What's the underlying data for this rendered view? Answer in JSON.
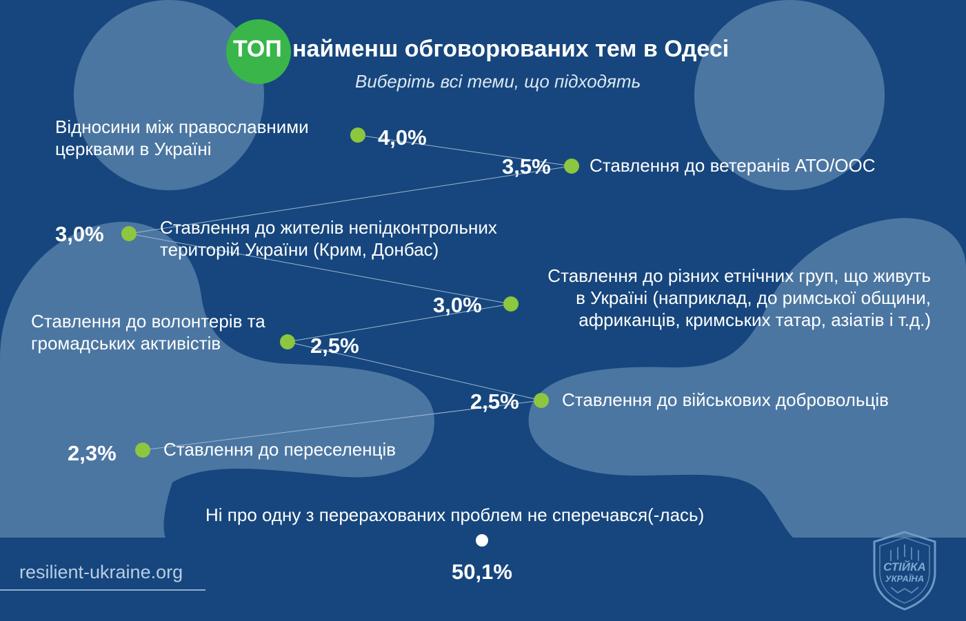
{
  "header": {
    "title_highlight": "ТОП",
    "title_rest": "найменш обговорюваних тем в Одесі",
    "subtitle": "Виберіть всі теми, що підходять",
    "colors": {
      "background": "#16467d",
      "shape": "#4b76a2",
      "badge": "#39b54a",
      "dot": "#8dc63f",
      "line": "#9db7d3"
    }
  },
  "chart_data": {
    "type": "scatter",
    "title": "ТОП найменш обговорюваних тем в Одесі",
    "subtitle": "Виберіть всі теми, що підходять",
    "unit": "%",
    "points": [
      {
        "label": "Відносини між православними церквами в Україні",
        "value": 4.0,
        "value_label": "4,0%"
      },
      {
        "label": "Ставлення до ветеранів АТО/ООС",
        "value": 3.5,
        "value_label": "3,5%"
      },
      {
        "label": "Ставлення до жителів непідконтрольних територій України (Крим, Донбас)",
        "value": 3.0,
        "value_label": "3,0%"
      },
      {
        "label": "Ставлення до різних етнічних груп, що живуть в Україні (наприклад, до римської общини, африканців, кримських татар, азіатів і т.д.)",
        "value": 3.0,
        "value_label": "3,0%"
      },
      {
        "label": "Ставлення до волонтерів та громадських активістів",
        "value": 2.5,
        "value_label": "2,5%"
      },
      {
        "label": "Ставлення до військових добровольців",
        "value": 2.5,
        "value_label": "2,5%"
      },
      {
        "label": "Ставлення до переселенців",
        "value": 2.3,
        "value_label": "2,3%"
      }
    ],
    "none_item": {
      "label": "Ні про одну з перерахованих проблем не сперечався(-лась)",
      "value": 50.1,
      "value_label": "50,1%"
    }
  },
  "labels": {
    "p1_line1": "Відносини між православними",
    "p1_line2": "церквами в Україні",
    "p2": "Ставлення до ветеранів АТО/ООС",
    "p3_line1": "Ставлення до жителів непідконтрольних",
    "p3_line2": "територій України (Крим, Донбас)",
    "p4_line1": "Ставлення до різних етнічних груп, що живуть",
    "p4_line2": "в Україні (наприклад, до римської общини,",
    "p4_line3": "африканців, кримських татар, азіатів і т.д.)",
    "p5_line1": "Ставлення до волонтерів та",
    "p5_line2": "громадських активістів",
    "p6": "Ставлення до військових добровольців",
    "p7": "Ставлення до переселенців"
  },
  "footer": {
    "site": "resilient-ukraine.org",
    "logo_line1": "СТІЙКА",
    "logo_line2": "УКРАЇНА"
  }
}
